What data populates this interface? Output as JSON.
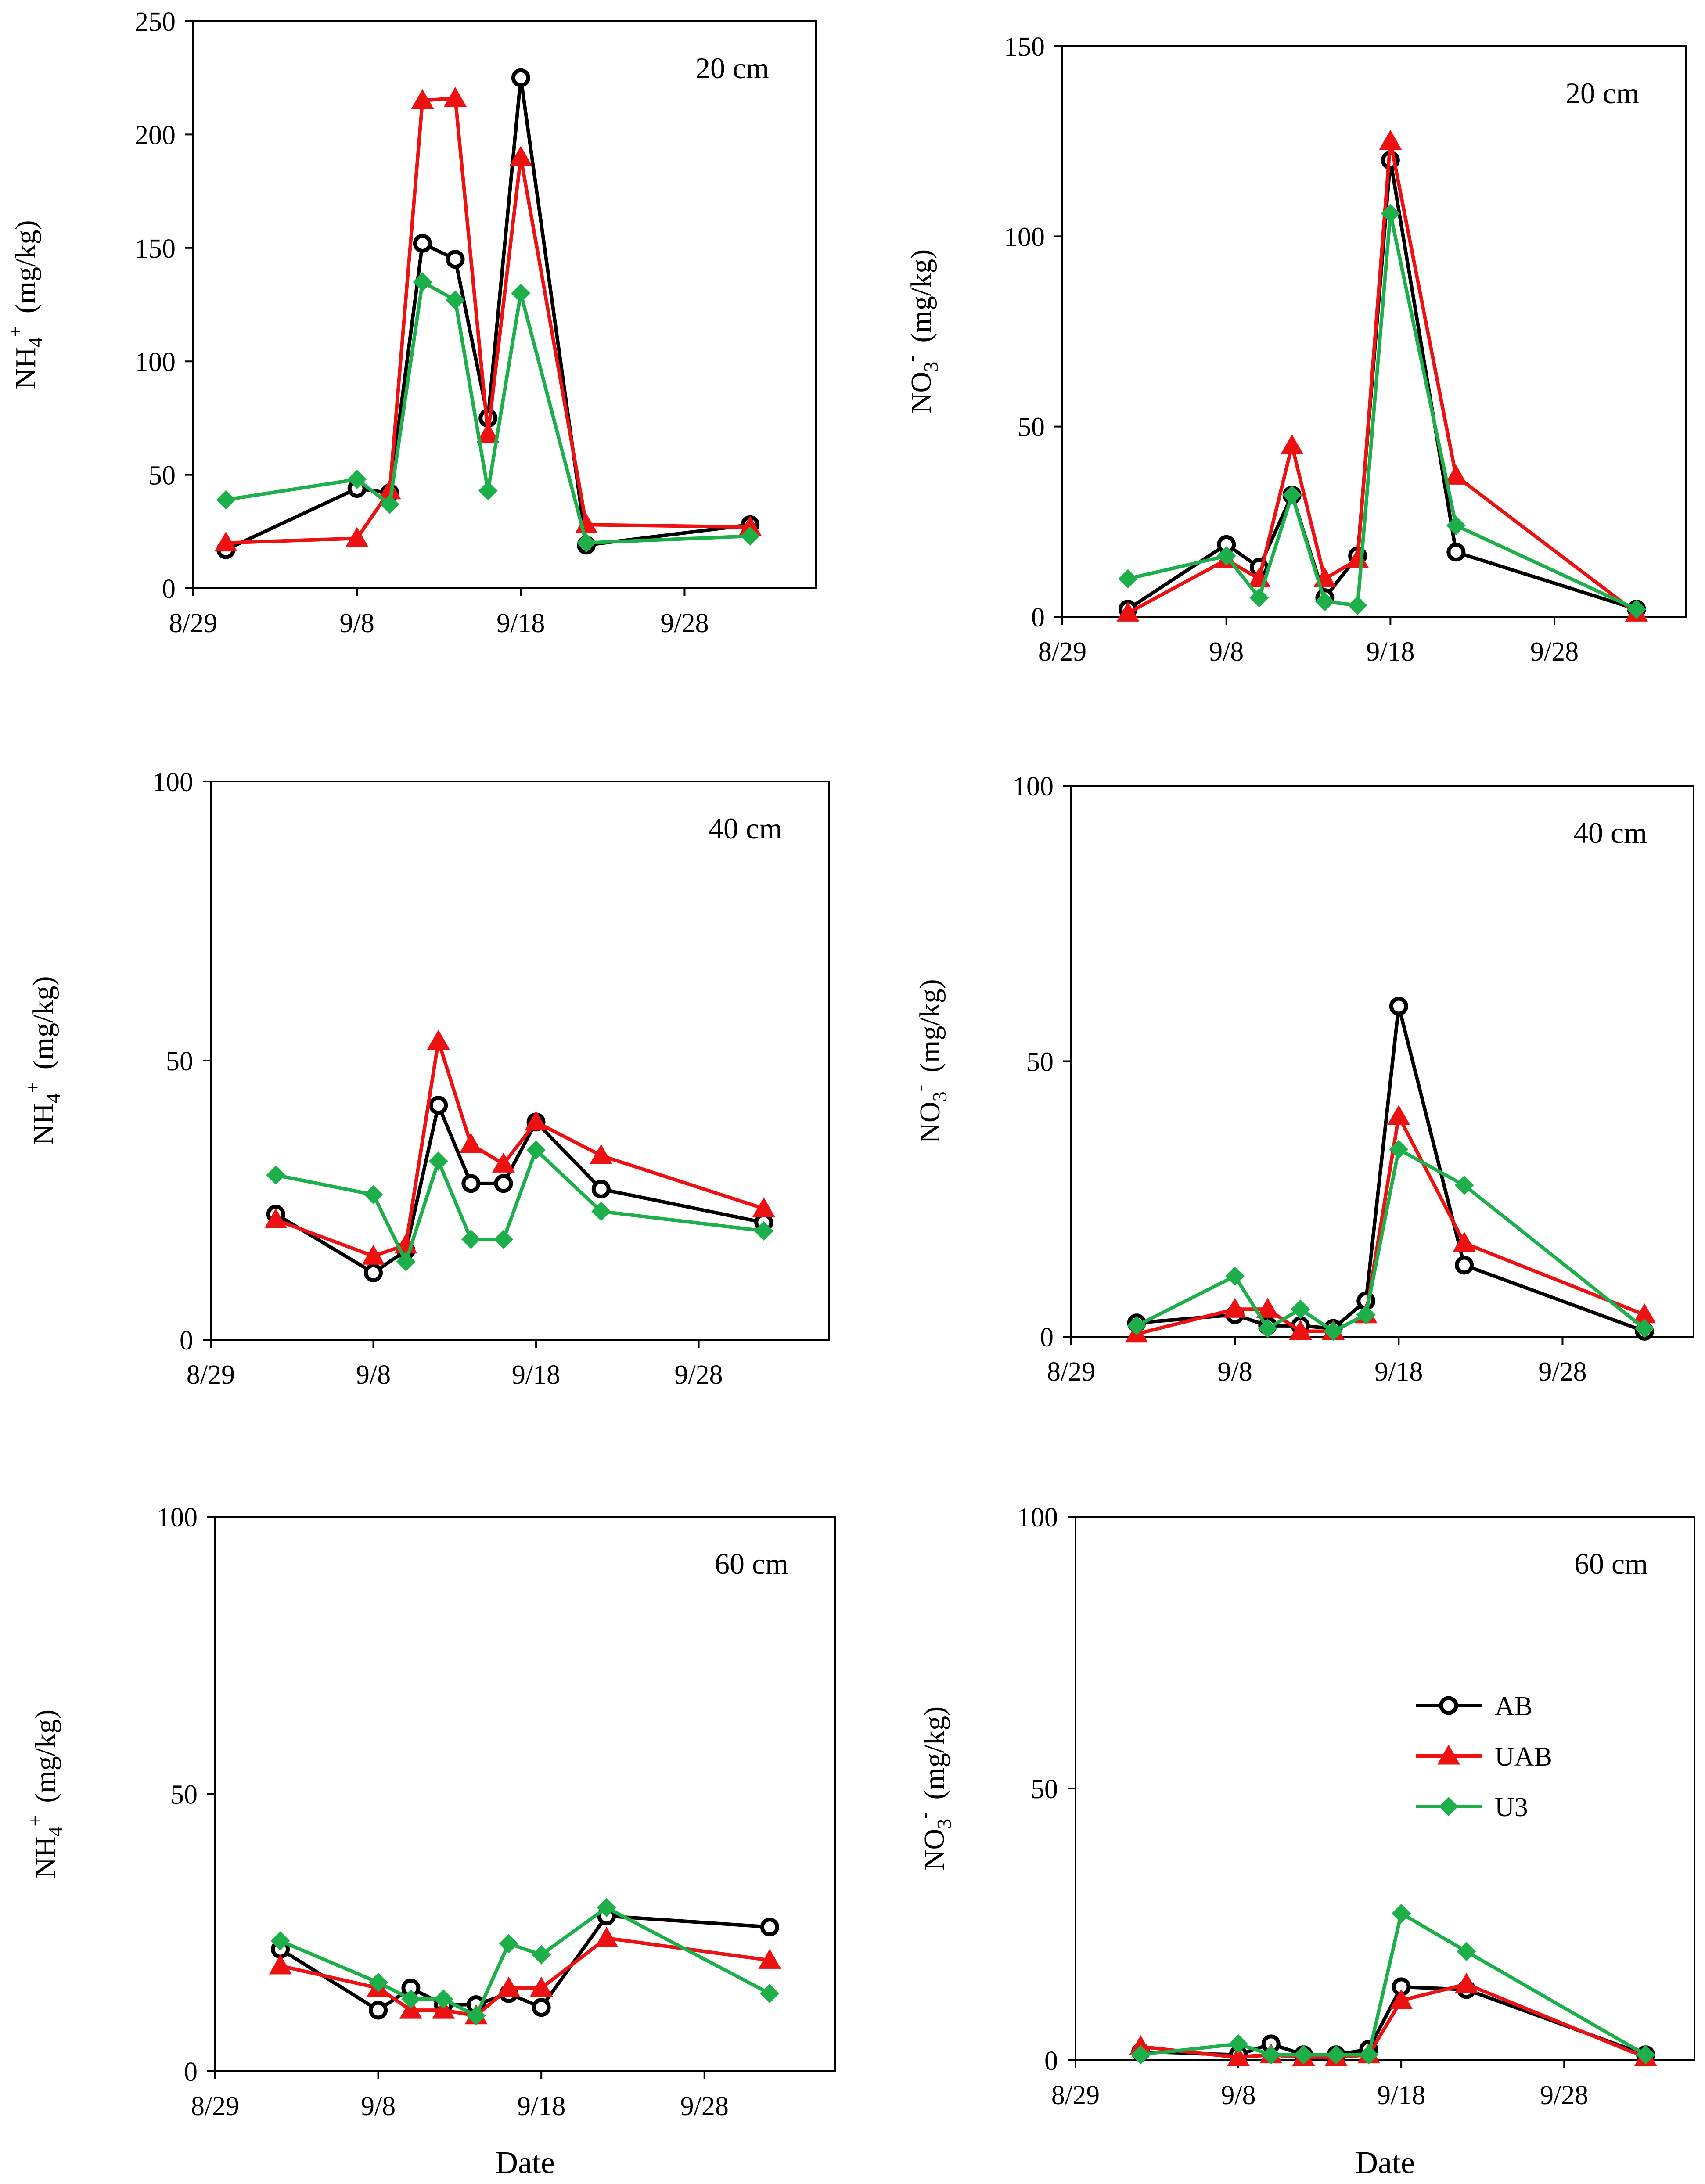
{
  "figure": {
    "x_axis_title": "Date",
    "series_style": [
      {
        "name": "AB",
        "color": "#000000",
        "marker": "circle"
      },
      {
        "name": "UAB",
        "color": "#ee1111",
        "marker": "triangle"
      },
      {
        "name": "U3",
        "color": "#1db04a",
        "marker": "diamond"
      }
    ],
    "legend": {
      "entries": [
        "AB",
        "UAB",
        "U3"
      ],
      "placement": "bottom-right panel, center-right"
    }
  },
  "chart_data": [
    {
      "type": "line",
      "id": "nh4-20",
      "title": "20 cm",
      "ylabel_main": "NH",
      "ylabel_sub": "4",
      "ylabel_sup": "+",
      "ylabel_unit": "(mg/kg)",
      "xlabel": "",
      "ylim": [
        0,
        250
      ],
      "yticks": [
        "0",
        "50",
        "100",
        "150",
        "200",
        "250"
      ],
      "xlim": [
        0,
        38
      ],
      "xtick_values": [
        0,
        10,
        20,
        30
      ],
      "xticks": [
        "8/29",
        "9/8",
        "9/18",
        "9/28"
      ],
      "series": [
        {
          "name": "AB",
          "x": [
            2,
            10,
            12,
            14,
            16,
            18,
            20,
            24,
            34
          ],
          "values": [
            17,
            44,
            42,
            152,
            145,
            75,
            225,
            19,
            28
          ]
        },
        {
          "name": "UAB",
          "x": [
            2,
            10,
            12,
            14,
            16,
            18,
            20,
            24,
            34
          ],
          "values": [
            20,
            22,
            43,
            215,
            216,
            68,
            190,
            28,
            27
          ]
        },
        {
          "name": "U3",
          "x": [
            2,
            10,
            12,
            14,
            16,
            18,
            20,
            24,
            34
          ],
          "values": [
            39,
            48,
            37,
            135,
            127,
            43,
            130,
            20,
            23
          ]
        }
      ]
    },
    {
      "type": "line",
      "id": "no3-20",
      "title": "20 cm",
      "ylabel_main": "NO",
      "ylabel_sub": "3",
      "ylabel_sup": "-",
      "ylabel_unit": "(mg/kg)",
      "xlabel": "",
      "ylim": [
        0,
        150
      ],
      "yticks": [
        "0",
        "50",
        "100",
        "150"
      ],
      "xlim": [
        0,
        38
      ],
      "xtick_values": [
        0,
        10,
        20,
        30
      ],
      "xticks": [
        "8/29",
        "9/8",
        "9/18",
        "9/28"
      ],
      "series": [
        {
          "name": "AB",
          "x": [
            4,
            10,
            12,
            14,
            16,
            18,
            20,
            24,
            35
          ],
          "values": [
            2,
            19,
            13,
            32,
            5,
            16,
            120,
            17,
            2
          ]
        },
        {
          "name": "UAB",
          "x": [
            4,
            10,
            12,
            14,
            16,
            18,
            20,
            24,
            35
          ],
          "values": [
            1,
            15,
            10,
            45,
            10,
            15,
            125,
            37,
            1
          ]
        },
        {
          "name": "U3",
          "x": [
            4,
            10,
            12,
            14,
            16,
            18,
            20,
            24,
            35
          ],
          "values": [
            10,
            16,
            5,
            32,
            4,
            3,
            106,
            24,
            2
          ]
        }
      ]
    },
    {
      "type": "line",
      "id": "nh4-40",
      "title": "40 cm",
      "ylabel_main": "NH",
      "ylabel_sub": "4",
      "ylabel_sup": "+",
      "ylabel_unit": "(mg/kg)",
      "xlabel": "",
      "ylim": [
        0,
        100
      ],
      "yticks": [
        "0",
        "50",
        "100"
      ],
      "xlim": [
        0,
        38
      ],
      "xtick_values": [
        0,
        10,
        20,
        30
      ],
      "xticks": [
        "8/29",
        "9/8",
        "9/18",
        "9/28"
      ],
      "series": [
        {
          "name": "AB",
          "x": [
            4,
            10,
            12,
            14,
            16,
            18,
            20,
            24,
            34
          ],
          "values": [
            22.5,
            12,
            16,
            42,
            28,
            28,
            39,
            27,
            21
          ]
        },
        {
          "name": "UAB",
          "x": [
            4,
            10,
            12,
            14,
            16,
            18,
            20,
            24,
            34
          ],
          "values": [
            21.5,
            15,
            17,
            53.5,
            35,
            31.5,
            39,
            33,
            23.5
          ]
        },
        {
          "name": "U3",
          "x": [
            4,
            10,
            12,
            14,
            16,
            18,
            20,
            24,
            34
          ],
          "values": [
            29.5,
            26,
            14,
            32,
            18,
            18,
            34,
            23,
            19.5
          ]
        }
      ]
    },
    {
      "type": "line",
      "id": "no3-40",
      "title": "40 cm",
      "ylabel_main": "NO",
      "ylabel_sub": "3",
      "ylabel_sup": "-",
      "ylabel_unit": "(mg/kg)",
      "xlabel": "",
      "ylim": [
        0,
        100
      ],
      "yticks": [
        "0",
        "50",
        "100"
      ],
      "xlim": [
        0,
        38
      ],
      "xtick_values": [
        0,
        10,
        20,
        30
      ],
      "xticks": [
        "8/29",
        "9/8",
        "9/18",
        "9/28"
      ],
      "series": [
        {
          "name": "AB",
          "x": [
            4,
            10,
            12,
            14,
            16,
            18,
            20,
            24,
            35
          ],
          "values": [
            2.5,
            4,
            2,
            2,
            1.5,
            6.5,
            60,
            13,
            1
          ]
        },
        {
          "name": "UAB",
          "x": [
            4,
            10,
            12,
            14,
            16,
            18,
            20,
            24,
            35
          ],
          "values": [
            0.5,
            5,
            5,
            1,
            1,
            4,
            40,
            17,
            4
          ]
        },
        {
          "name": "U3",
          "x": [
            4,
            10,
            12,
            14,
            16,
            18,
            20,
            24,
            35
          ],
          "values": [
            2,
            11,
            1.5,
            5,
            1,
            4,
            34,
            27.5,
            1.5
          ]
        }
      ]
    },
    {
      "type": "line",
      "id": "nh4-60",
      "title": "60 cm",
      "ylabel_main": "NH",
      "ylabel_sub": "4",
      "ylabel_sup": "+",
      "ylabel_unit": "(mg/kg)",
      "xlabel": "Date",
      "ylim": [
        0,
        100
      ],
      "yticks": [
        "0",
        "50",
        "100"
      ],
      "xlim": [
        0,
        38
      ],
      "xtick_values": [
        0,
        10,
        20,
        30
      ],
      "xticks": [
        "8/29",
        "9/8",
        "9/18",
        "9/28"
      ],
      "series": [
        {
          "name": "AB",
          "x": [
            4,
            10,
            12,
            14,
            16,
            18,
            20,
            24,
            34
          ],
          "values": [
            22,
            11,
            15,
            12,
            12,
            14,
            11.5,
            28,
            26
          ]
        },
        {
          "name": "UAB",
          "x": [
            4,
            10,
            12,
            14,
            16,
            18,
            20,
            24,
            34
          ],
          "values": [
            19,
            15,
            11,
            11,
            10,
            15,
            15,
            24,
            20
          ]
        },
        {
          "name": "U3",
          "x": [
            4,
            10,
            12,
            14,
            16,
            18,
            20,
            24,
            34
          ],
          "values": [
            23.5,
            16,
            13,
            13,
            10,
            23,
            21,
            29.5,
            14
          ]
        }
      ]
    },
    {
      "type": "line",
      "id": "no3-60",
      "title": "60 cm",
      "ylabel_main": "NO",
      "ylabel_sub": "3",
      "ylabel_sup": "-",
      "ylabel_unit": "(mg/kg)",
      "xlabel": "Date",
      "ylim": [
        0,
        100
      ],
      "yticks": [
        "0",
        "50",
        "100"
      ],
      "xlim": [
        0,
        38
      ],
      "xtick_values": [
        0,
        10,
        20,
        30
      ],
      "xticks": [
        "8/29",
        "9/8",
        "9/18",
        "9/28"
      ],
      "series": [
        {
          "name": "AB",
          "x": [
            4,
            10,
            12,
            14,
            16,
            18,
            20,
            24,
            35
          ],
          "values": [
            1.5,
            1,
            3,
            1,
            1,
            2,
            13.5,
            13,
            1
          ]
        },
        {
          "name": "UAB",
          "x": [
            4,
            10,
            12,
            14,
            16,
            18,
            20,
            24,
            35
          ],
          "values": [
            2.5,
            0.5,
            1,
            0.5,
            0.5,
            1,
            11,
            14,
            0.5
          ]
        },
        {
          "name": "U3",
          "x": [
            4,
            10,
            12,
            14,
            16,
            18,
            20,
            24,
            35
          ],
          "values": [
            1,
            3,
            1,
            1,
            1,
            1,
            27,
            20,
            1
          ]
        }
      ]
    }
  ]
}
